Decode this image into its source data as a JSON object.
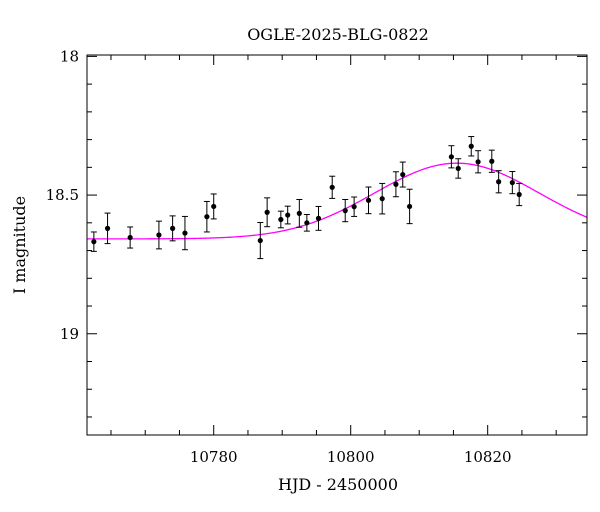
{
  "chart_data": {
    "type": "scatter",
    "title": "OGLE-2025-BLG-0822",
    "xlabel": "HJD - 2450000",
    "ylabel": "I magnitude",
    "xlim": [
      10761.5,
      10834.5
    ],
    "ylim": [
      19.365,
      17.995
    ],
    "y_inverted": true,
    "grid": false,
    "xticks": [
      10780,
      10800,
      10820
    ],
    "xtick_labels": [
      "10780",
      "10800",
      "10820"
    ],
    "yticks": [
      18,
      18.5,
      19
    ],
    "ytick_labels": [
      "18",
      "18.5",
      "19"
    ],
    "x_minor_step": 5,
    "y_minor_step": 0.1,
    "colors": {
      "points": "#000000",
      "errorbars": "#000000",
      "model": "#ff00ff",
      "axes": "#000000"
    },
    "series": [
      {
        "kind": "points_with_errors",
        "points": [
          {
            "x": 10762.5,
            "y": 18.668,
            "err": 0.035
          },
          {
            "x": 10764.5,
            "y": 18.62,
            "err": 0.055
          },
          {
            "x": 10767.8,
            "y": 18.653,
            "err": 0.038
          },
          {
            "x": 10772.0,
            "y": 18.644,
            "err": 0.05
          },
          {
            "x": 10774.0,
            "y": 18.62,
            "err": 0.045
          },
          {
            "x": 10775.8,
            "y": 18.637,
            "err": 0.06
          },
          {
            "x": 10779.0,
            "y": 18.578,
            "err": 0.055
          },
          {
            "x": 10780.0,
            "y": 18.541,
            "err": 0.045
          },
          {
            "x": 10786.8,
            "y": 18.664,
            "err": 0.065
          },
          {
            "x": 10787.8,
            "y": 18.562,
            "err": 0.052
          },
          {
            "x": 10789.8,
            "y": 18.588,
            "err": 0.03
          },
          {
            "x": 10790.8,
            "y": 18.572,
            "err": 0.032
          },
          {
            "x": 10792.5,
            "y": 18.566,
            "err": 0.05
          },
          {
            "x": 10793.6,
            "y": 18.6,
            "err": 0.03
          },
          {
            "x": 10795.3,
            "y": 18.584,
            "err": 0.043
          },
          {
            "x": 10797.3,
            "y": 18.472,
            "err": 0.04
          },
          {
            "x": 10799.2,
            "y": 18.556,
            "err": 0.04
          },
          {
            "x": 10800.5,
            "y": 18.542,
            "err": 0.035
          },
          {
            "x": 10802.6,
            "y": 18.519,
            "err": 0.048
          },
          {
            "x": 10804.6,
            "y": 18.513,
            "err": 0.055
          },
          {
            "x": 10806.6,
            "y": 18.461,
            "err": 0.045
          },
          {
            "x": 10807.6,
            "y": 18.426,
            "err": 0.045
          },
          {
            "x": 10808.6,
            "y": 18.541,
            "err": 0.062
          },
          {
            "x": 10814.7,
            "y": 18.362,
            "err": 0.04
          },
          {
            "x": 10815.7,
            "y": 18.404,
            "err": 0.035
          },
          {
            "x": 10817.6,
            "y": 18.324,
            "err": 0.035
          },
          {
            "x": 10818.6,
            "y": 18.38,
            "err": 0.04
          },
          {
            "x": 10820.6,
            "y": 18.378,
            "err": 0.04
          },
          {
            "x": 10821.6,
            "y": 18.452,
            "err": 0.04
          },
          {
            "x": 10823.6,
            "y": 18.455,
            "err": 0.04
          },
          {
            "x": 10824.6,
            "y": 18.498,
            "err": 0.04
          }
        ]
      },
      {
        "kind": "model_curve",
        "baseline_mag": 18.658,
        "peak_time": 10815.5,
        "peak_mag": 18.385,
        "width": 12.0
      }
    ]
  }
}
